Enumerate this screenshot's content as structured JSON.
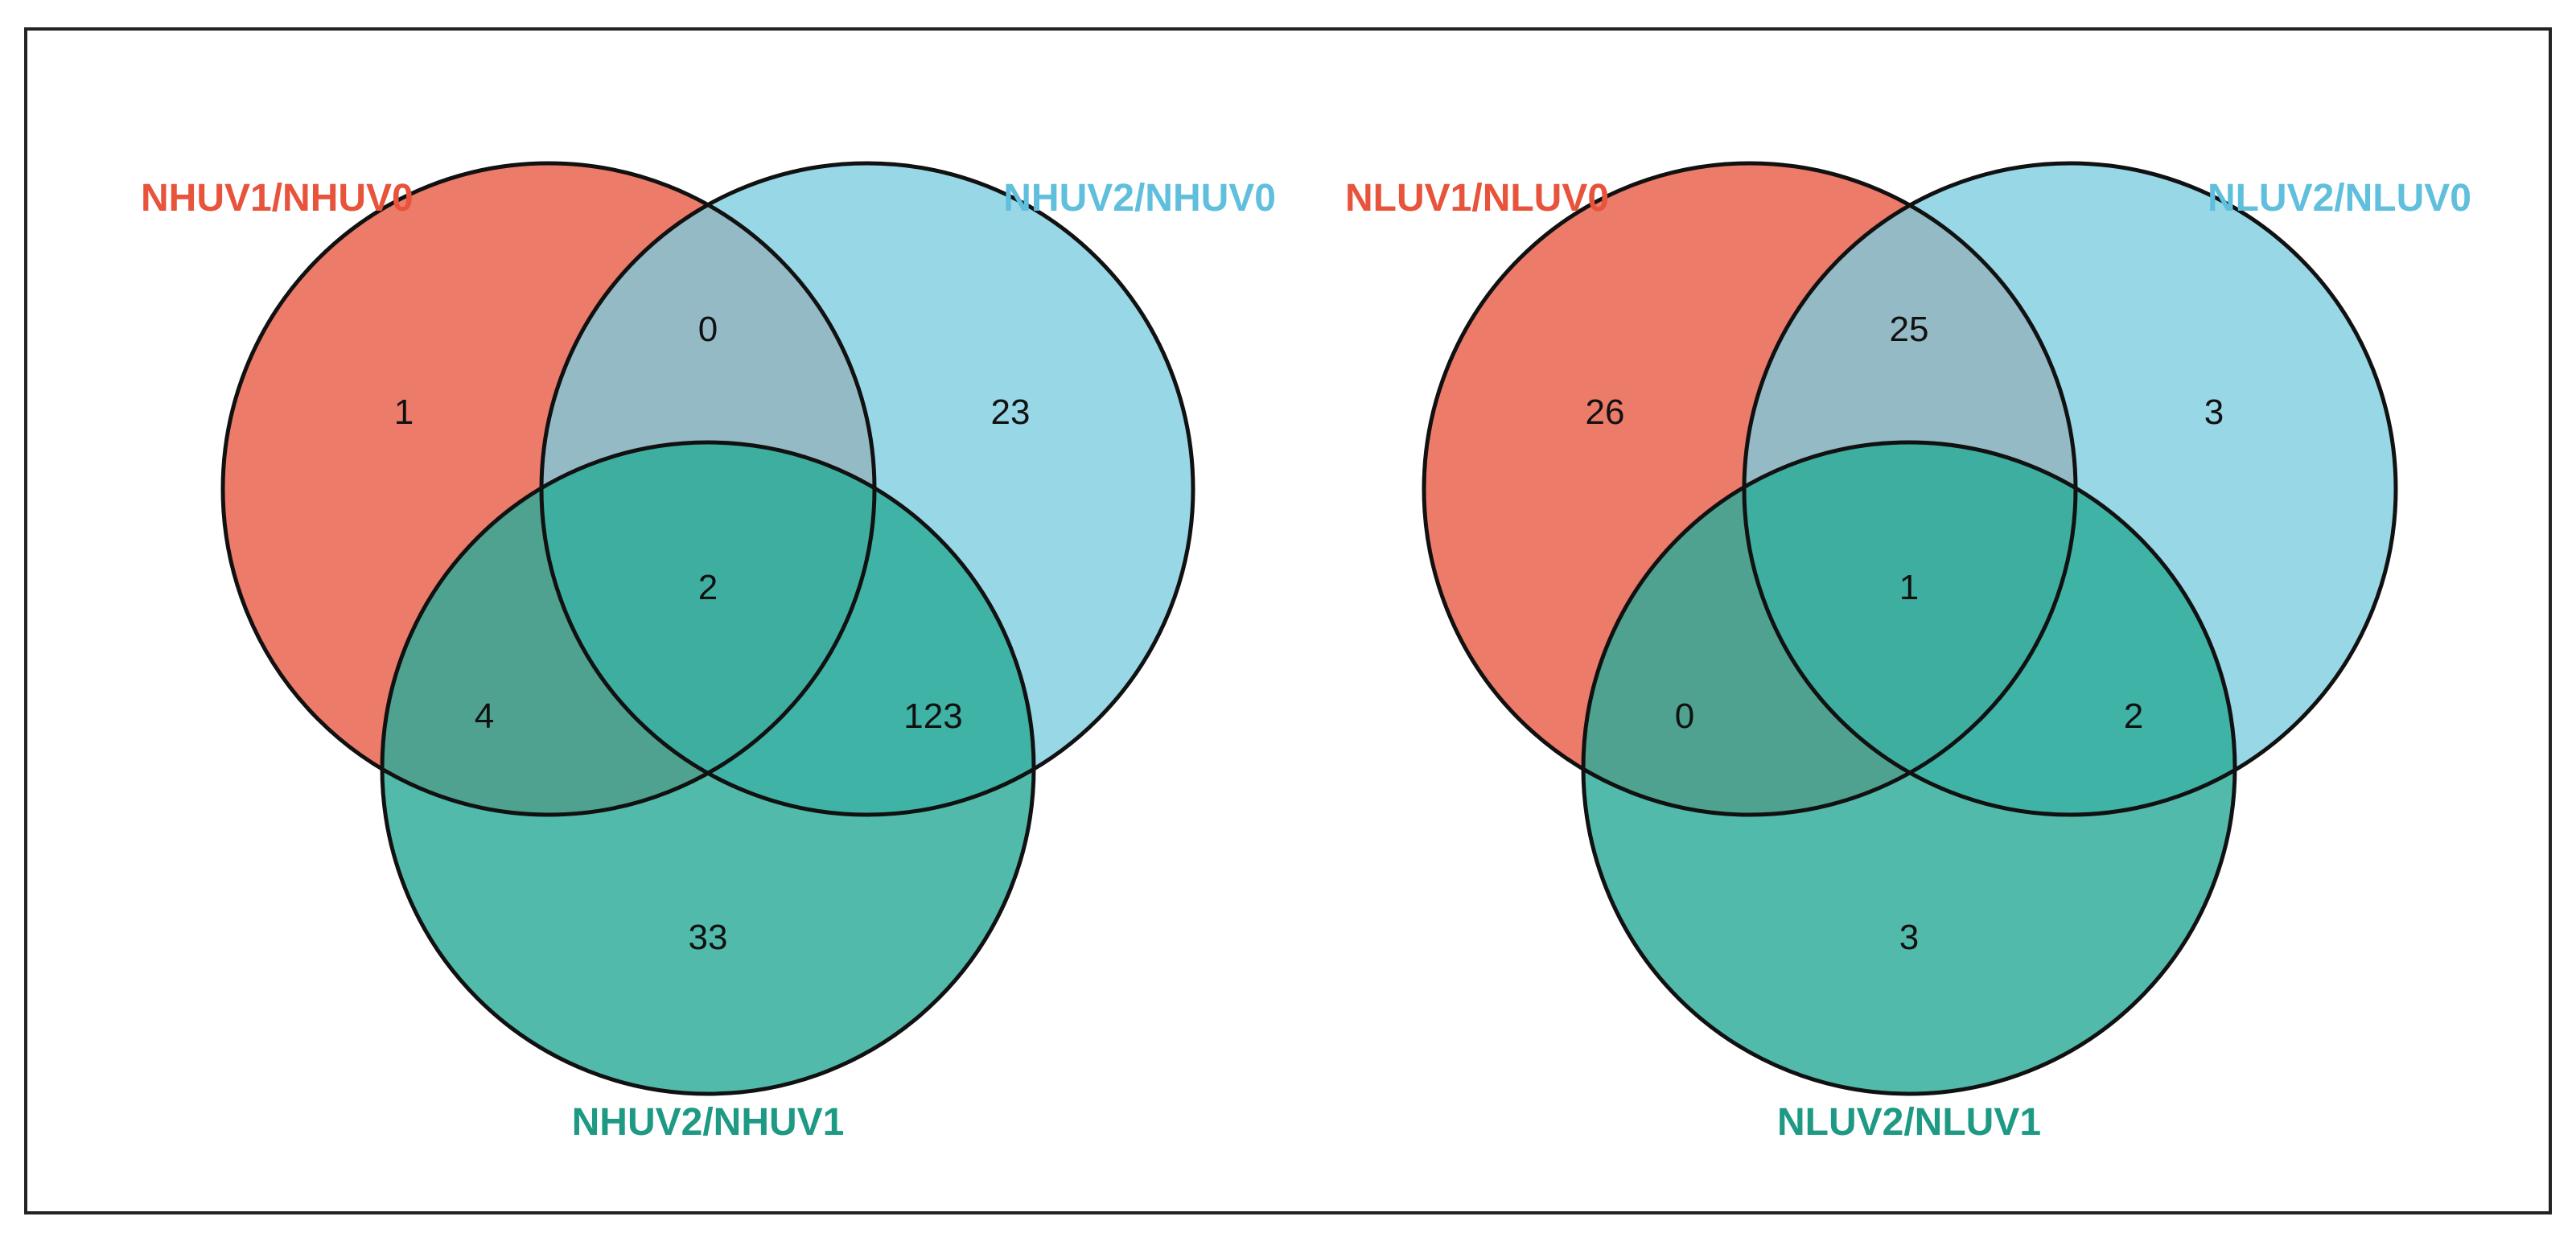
{
  "colors": {
    "set_a": "#ec7b6a",
    "set_b": "#7accdf",
    "set_c": "#2bab97",
    "label_a": "#e8533b",
    "label_b": "#5fbfdc",
    "label_c": "#1e9a84",
    "outline": "#111111",
    "frame": "#222222"
  },
  "diagrams": [
    {
      "sets": {
        "a": "NHUV1/NHUV0",
        "b": "NHUV2/NHUV0",
        "c": "NHUV2/NHUV1"
      },
      "counts": {
        "a_only": "1",
        "b_only": "23",
        "c_only": "33",
        "ab": "0",
        "ac": "4",
        "bc": "123",
        "abc": "2"
      }
    },
    {
      "sets": {
        "a": "NLUV1/NLUV0",
        "b": "NLUV2/NLUV0",
        "c": "NLUV2/NLUV1"
      },
      "counts": {
        "a_only": "26",
        "b_only": "3",
        "c_only": "3",
        "ab": "25",
        "ac": "0",
        "bc": "2",
        "abc": "1"
      }
    }
  ]
}
